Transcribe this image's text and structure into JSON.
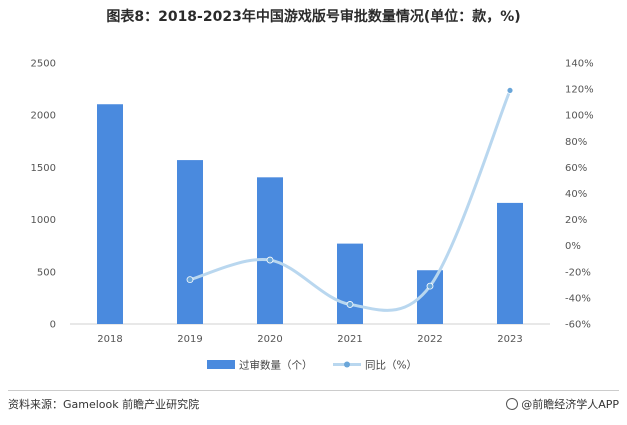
{
  "title": "图表8：2018-2023年中国游戏版号审批数量情况(单位：款，%)",
  "chart_data": {
    "type": "bar",
    "categories": [
      "2018",
      "2019",
      "2020",
      "2021",
      "2022",
      "2023"
    ],
    "series": [
      {
        "name": "过审数量（个）",
        "type": "bar",
        "axis": "left",
        "color": "#4a8ade",
        "values": [
          2105,
          1570,
          1405,
          770,
          515,
          1160
        ]
      },
      {
        "name": "同比（%）",
        "type": "line",
        "axis": "right",
        "color": "#b9d7ef",
        "values": [
          null,
          -26,
          -11,
          -45,
          -31,
          119
        ]
      }
    ],
    "y_left": {
      "min": 0,
      "max": 2500,
      "ticks": [
        "0",
        "500",
        "1000",
        "1500",
        "2000",
        "2500"
      ]
    },
    "y_right": {
      "min": -60,
      "max": 140,
      "ticks": [
        "-60%",
        "-40%",
        "-20%",
        "0%",
        "20%",
        "40%",
        "60%",
        "80%",
        "100%",
        "120%",
        "140%"
      ]
    },
    "grid": false,
    "legend_position": "bottom"
  },
  "footer": {
    "source": "资料来源：Gamelook 前瞻产业研究院",
    "brand": "@前瞻经济学人APP"
  }
}
